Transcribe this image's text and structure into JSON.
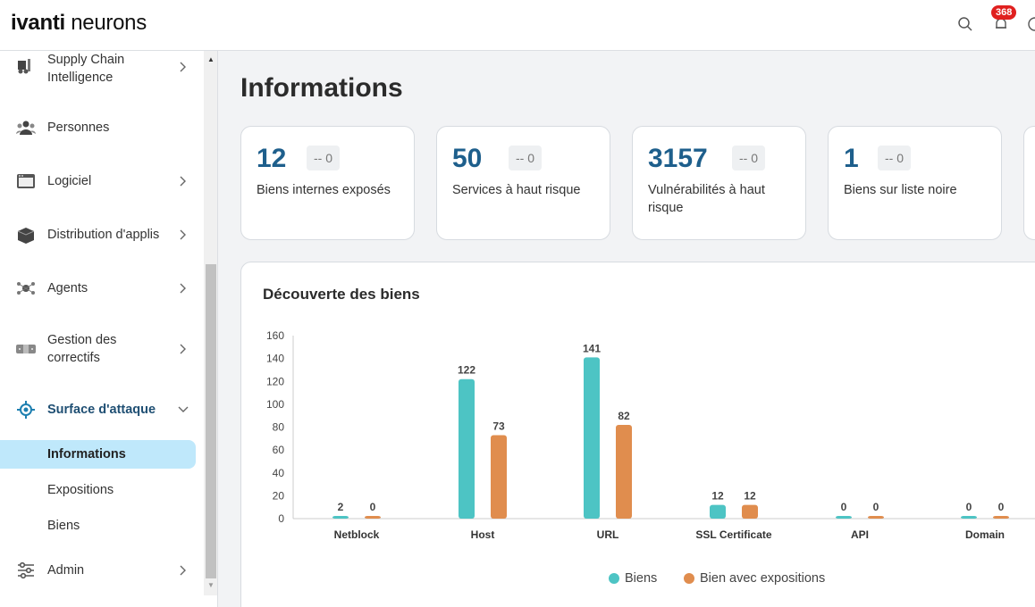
{
  "header": {
    "logo_brand": "ivanti",
    "logo_product": " neurons",
    "notification_count": "368"
  },
  "sidebar": {
    "items": [
      {
        "label_line1": "Supply Chain",
        "label_line2": "Intelligence",
        "icon": "supply-chain-icon"
      },
      {
        "label": "Personnes",
        "icon": "people-icon"
      },
      {
        "label": "Logiciel",
        "icon": "software-icon"
      },
      {
        "label": "Distribution d'applis",
        "icon": "app-distribution-icon"
      },
      {
        "label": "Agents",
        "icon": "agents-icon"
      },
      {
        "label_line1": "Gestion des",
        "label_line2": "correctifs",
        "icon": "patch-management-icon"
      },
      {
        "label": "Surface d'attaque",
        "icon": "attack-surface-icon"
      },
      {
        "label": "Admin",
        "icon": "admin-icon"
      }
    ],
    "subitems": [
      {
        "label": "Informations",
        "active": true
      },
      {
        "label": "Expositions"
      },
      {
        "label": "Biens"
      }
    ]
  },
  "main": {
    "title": "Informations",
    "cards": [
      {
        "value": "12",
        "delta": "-- 0",
        "desc": "Biens internes exposés"
      },
      {
        "value": "50",
        "delta": "-- 0",
        "desc": "Services à haut risque"
      },
      {
        "value": "3157",
        "delta": "-- 0",
        "desc": "Vulnérabilités à haut risque"
      },
      {
        "value": "1",
        "delta": "-- 0",
        "desc": "Biens sur liste noire"
      }
    ],
    "chart_title": "Découverte des biens"
  },
  "colors": {
    "accent": "#1e5f8c",
    "series_biens": "#4dc4c4",
    "series_expositions": "#e08d4e",
    "badge": "#e0201f",
    "active_nav": "#bfe8fb"
  },
  "chart_data": {
    "type": "bar",
    "title": "Découverte des biens",
    "categories": [
      "Netblock",
      "Host",
      "URL",
      "SSL Certificate",
      "API",
      "Domain"
    ],
    "series": [
      {
        "name": "Biens",
        "values": [
          2,
          122,
          141,
          12,
          0,
          0
        ]
      },
      {
        "name": "Bien avec expositions",
        "values": [
          0,
          73,
          82,
          12,
          0,
          0
        ]
      }
    ],
    "ylim": [
      0,
      160
    ],
    "yticks": [
      "0",
      "20",
      "40",
      "60",
      "80",
      "100",
      "120",
      "140",
      "160"
    ],
    "legend_position": "bottom",
    "grid": false
  }
}
